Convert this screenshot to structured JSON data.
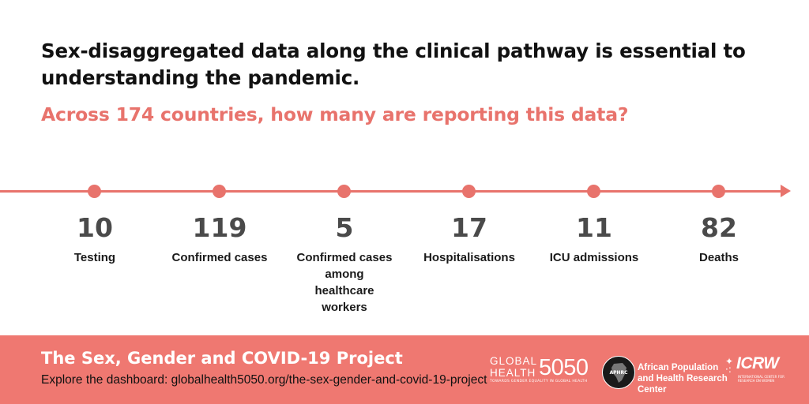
{
  "headline": "Sex-disaggregated data along the clinical pathway is essential to understanding the pandemic.",
  "subheadline": "Across 174 countries, how many are reporting this data?",
  "accent_color": "#e8736c",
  "footer_color": "#ef7871",
  "stages": [
    {
      "value": "10",
      "label": "Testing"
    },
    {
      "value": "119",
      "label": "Confirmed cases"
    },
    {
      "value": "5",
      "label": "Confirmed cases among healthcare workers"
    },
    {
      "value": "17",
      "label": "Hospitalisations"
    },
    {
      "value": "11",
      "label": "ICU admissions"
    },
    {
      "value": "82",
      "label": "Deaths"
    }
  ],
  "footer": {
    "title": "The Sex, Gender and COVID-19 Project",
    "link_text": "Explore the dashboard: globalhealth5050.org/the-sex-gender-and-covid-19-project"
  },
  "logos": {
    "globalhealth": {
      "line1": "GLOBAL",
      "line2": "HEALTH",
      "number": "5050",
      "tagline": "TOWARDS GENDER EQUALITY IN GLOBAL HEALTH"
    },
    "aphrc": {
      "abbr": "APHRC",
      "name": "African Population and Health Research Center"
    },
    "icrw": {
      "name": "ICRW",
      "tagline": "INTERNATIONAL CENTER FOR RESEARCH ON WOMEN"
    }
  }
}
